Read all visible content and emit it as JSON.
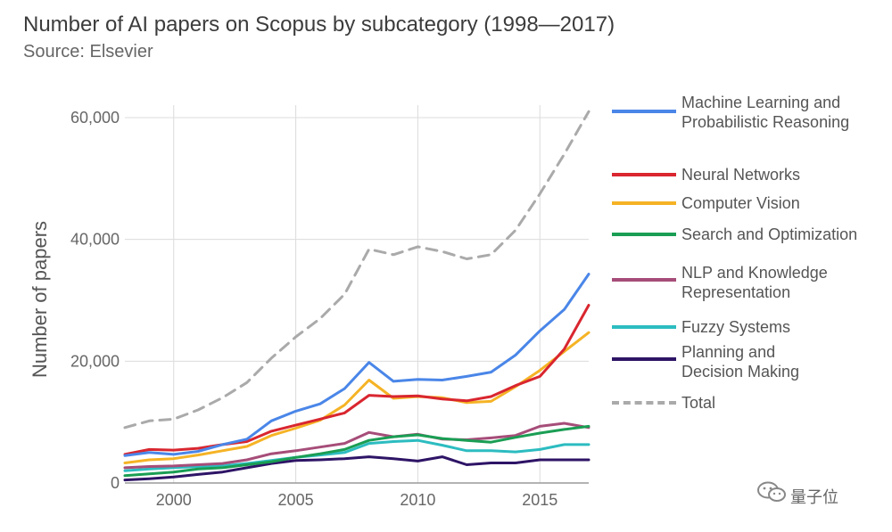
{
  "chart_data": {
    "type": "line",
    "title": "Number of AI papers on Scopus by subcategory (1998—2017)",
    "subtitle": "Source: Elsevier",
    "xlabel": "",
    "ylabel": "Number of papers",
    "xlim": [
      1998,
      2017
    ],
    "ylim": [
      0,
      62000
    ],
    "xticks": [
      2000,
      2005,
      2010,
      2015
    ],
    "xtick_labels": [
      "2000",
      "2005",
      "2010",
      "2015"
    ],
    "yticks": [
      0,
      20000,
      40000,
      60000
    ],
    "ytick_labels": [
      "0",
      "20,000",
      "40,000",
      "60,000"
    ],
    "grid": true,
    "legend_position": "right",
    "x": [
      1998,
      1999,
      2000,
      2001,
      2002,
      2003,
      2004,
      2005,
      2006,
      2007,
      2008,
      2009,
      2010,
      2011,
      2012,
      2013,
      2014,
      2015,
      2016,
      2017
    ],
    "series": [
      {
        "name": "Machine Learning and Probabilistic Reasoning",
        "color": "#4a86e8",
        "values": [
          4500,
          5000,
          4700,
          5200,
          6300,
          7200,
          10200,
          11800,
          13000,
          15500,
          19800,
          16700,
          17000,
          16900,
          17500,
          18200,
          21000,
          25000,
          28500,
          34300
        ]
      },
      {
        "name": "Neural Networks",
        "color": "#d9262f",
        "values": [
          4700,
          5500,
          5400,
          5700,
          6300,
          6800,
          8500,
          9500,
          10500,
          11500,
          14400,
          14200,
          14300,
          13800,
          13500,
          14200,
          16000,
          17500,
          22000,
          29200
        ]
      },
      {
        "name": "Computer Vision",
        "color": "#f5b325",
        "values": [
          3300,
          3800,
          4000,
          4600,
          5300,
          6000,
          7800,
          9000,
          10300,
          12800,
          16900,
          13900,
          14200,
          14000,
          13200,
          13400,
          15800,
          18500,
          21600,
          24700
        ]
      },
      {
        "name": "Search and Optimization",
        "color": "#1a9e54",
        "values": [
          1200,
          1500,
          1800,
          2300,
          2500,
          3000,
          3500,
          4200,
          4800,
          5500,
          7000,
          7600,
          7900,
          7300,
          7000,
          6700,
          7500,
          8200,
          8800,
          9300
        ]
      },
      {
        "name": "NLP and Knowledge Representation",
        "color": "#a64d79",
        "values": [
          2500,
          2700,
          2800,
          3000,
          3200,
          3800,
          4800,
          5300,
          5900,
          6500,
          8300,
          7600,
          8000,
          7200,
          7100,
          7400,
          7800,
          9300,
          9800,
          9100
        ]
      },
      {
        "name": "Fuzzy Systems",
        "color": "#2cbcc0",
        "values": [
          2000,
          2300,
          2500,
          2700,
          2800,
          3200,
          3700,
          4200,
          4600,
          5000,
          6500,
          6800,
          7000,
          6200,
          5300,
          5300,
          5100,
          5500,
          6300,
          6300
        ]
      },
      {
        "name": "Planning and Decision Making",
        "color": "#2e1466",
        "values": [
          500,
          700,
          1000,
          1400,
          1800,
          2500,
          3200,
          3700,
          3800,
          4000,
          4300,
          4000,
          3600,
          4300,
          3000,
          3300,
          3300,
          3800,
          3800,
          3800
        ]
      },
      {
        "name": "Total",
        "color": "#aaaaaa",
        "dashed": true,
        "values": [
          9100,
          10200,
          10500,
          12000,
          14000,
          16500,
          20500,
          24000,
          27000,
          31000,
          38400,
          37500,
          38800,
          38000,
          36800,
          37500,
          41500,
          47500,
          54000,
          61000
        ]
      }
    ],
    "legend_labels": [
      [
        "Machine Learning and",
        "Probabilistic Reasoning"
      ],
      [
        "Neural Networks"
      ],
      [
        "Computer Vision"
      ],
      [
        "Search and Optimization"
      ],
      [
        "NLP and Knowledge",
        "Representation"
      ],
      [
        "Fuzzy Systems"
      ],
      [
        "Planning and",
        "Decision Making"
      ],
      [
        "Total"
      ]
    ]
  },
  "watermark": {
    "text": "量子位",
    "icon": "wechat-icon"
  }
}
